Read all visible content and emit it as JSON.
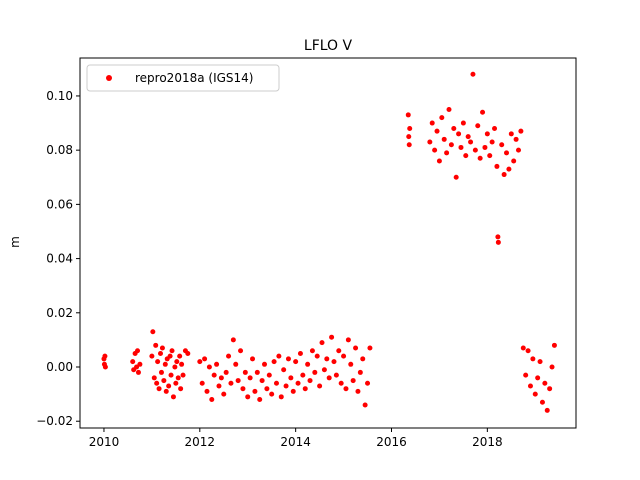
{
  "chart_data": {
    "type": "scatter",
    "title": "LFLO V",
    "xlabel": "",
    "ylabel": "m",
    "xlim": [
      2009.5,
      2019.85
    ],
    "ylim": [
      -0.0225,
      0.114
    ],
    "xticks": [
      2010,
      2012,
      2014,
      2016,
      2018
    ],
    "xtick_labels": [
      "2010",
      "2012",
      "2014",
      "2016",
      "2018"
    ],
    "yticks": [
      -0.02,
      0.0,
      0.02,
      0.04,
      0.06,
      0.08,
      0.1
    ],
    "ytick_labels": [
      "−0.02",
      "0.00",
      "0.02",
      "0.04",
      "0.06",
      "0.08",
      "0.10"
    ],
    "grid": false,
    "legend_position": "upper-left",
    "series": [
      {
        "name": "repro2018a (IGS14)",
        "color": "#ff0000",
        "marker": "circle",
        "x": [
          2010.0,
          2010.01,
          2010.02,
          2010.03,
          2010.6,
          2010.62,
          2010.65,
          2010.68,
          2010.7,
          2010.72,
          2010.75,
          2011.0,
          2011.02,
          2011.05,
          2011.08,
          2011.1,
          2011.12,
          2011.15,
          2011.18,
          2011.2,
          2011.22,
          2011.25,
          2011.28,
          2011.3,
          2011.32,
          2011.35,
          2011.38,
          2011.4,
          2011.42,
          2011.45,
          2011.48,
          2011.5,
          2011.52,
          2011.55,
          2011.58,
          2011.6,
          2011.62,
          2011.65,
          2011.7,
          2011.75,
          2012.0,
          2012.05,
          2012.1,
          2012.15,
          2012.2,
          2012.25,
          2012.3,
          2012.35,
          2012.4,
          2012.45,
          2012.5,
          2012.55,
          2012.6,
          2012.65,
          2012.7,
          2012.75,
          2012.8,
          2012.85,
          2012.9,
          2012.95,
          2013.0,
          2013.05,
          2013.1,
          2013.15,
          2013.2,
          2013.25,
          2013.3,
          2013.35,
          2013.4,
          2013.45,
          2013.5,
          2013.55,
          2013.6,
          2013.65,
          2013.7,
          2013.75,
          2013.8,
          2013.85,
          2013.9,
          2013.95,
          2014.0,
          2014.05,
          2014.1,
          2014.15,
          2014.2,
          2014.25,
          2014.3,
          2014.35,
          2014.4,
          2014.45,
          2014.5,
          2014.55,
          2014.6,
          2014.65,
          2014.7,
          2014.75,
          2014.8,
          2014.85,
          2014.9,
          2014.95,
          2015.0,
          2015.05,
          2015.1,
          2015.15,
          2015.2,
          2015.25,
          2015.3,
          2015.35,
          2015.4,
          2015.45,
          2015.5,
          2015.55,
          2016.35,
          2016.36,
          2016.37,
          2016.38,
          2016.8,
          2016.85,
          2016.9,
          2016.95,
          2017.0,
          2017.05,
          2017.1,
          2017.15,
          2017.2,
          2017.25,
          2017.3,
          2017.35,
          2017.4,
          2017.45,
          2017.5,
          2017.55,
          2017.6,
          2017.65,
          2017.7,
          2017.75,
          2017.8,
          2017.85,
          2017.9,
          2017.95,
          2018.0,
          2018.05,
          2018.1,
          2018.15,
          2018.2,
          2018.22,
          2018.23,
          2018.3,
          2018.35,
          2018.4,
          2018.45,
          2018.5,
          2018.55,
          2018.6,
          2018.65,
          2018.7,
          2018.75,
          2018.8,
          2018.85,
          2018.9,
          2018.95,
          2019.0,
          2019.05,
          2019.1,
          2019.15,
          2019.2,
          2019.25,
          2019.3,
          2019.35,
          2019.4
        ],
        "y": [
          0.003,
          0.001,
          0.004,
          0.0,
          0.002,
          -0.001,
          0.005,
          0.0,
          0.006,
          -0.002,
          0.001,
          0.004,
          0.013,
          -0.004,
          0.008,
          -0.006,
          0.002,
          -0.008,
          0.005,
          -0.002,
          0.007,
          -0.005,
          0.001,
          -0.009,
          0.003,
          -0.007,
          0.004,
          -0.003,
          0.006,
          -0.011,
          0.0,
          -0.006,
          0.002,
          -0.004,
          0.004,
          -0.008,
          0.001,
          -0.003,
          0.006,
          0.005,
          0.002,
          -0.006,
          0.003,
          -0.009,
          0.0,
          -0.012,
          -0.003,
          0.001,
          -0.007,
          -0.004,
          -0.01,
          -0.002,
          0.004,
          -0.006,
          0.01,
          0.001,
          -0.005,
          0.006,
          -0.008,
          -0.002,
          -0.011,
          -0.004,
          0.003,
          -0.009,
          -0.002,
          -0.012,
          -0.005,
          0.001,
          -0.008,
          -0.003,
          -0.01,
          0.002,
          -0.006,
          0.004,
          -0.011,
          -0.001,
          -0.007,
          0.003,
          -0.004,
          -0.009,
          0.002,
          -0.006,
          0.005,
          -0.003,
          -0.008,
          0.001,
          -0.005,
          0.006,
          -0.002,
          0.004,
          -0.007,
          0.009,
          -0.001,
          0.003,
          -0.004,
          0.011,
          0.002,
          -0.003,
          0.006,
          -0.006,
          0.004,
          -0.008,
          0.01,
          0.001,
          -0.005,
          0.007,
          -0.009,
          -0.002,
          0.003,
          -0.014,
          -0.006,
          0.007,
          0.093,
          0.085,
          0.082,
          0.088,
          0.083,
          0.09,
          0.08,
          0.087,
          0.076,
          0.092,
          0.084,
          0.079,
          0.095,
          0.082,
          0.088,
          0.07,
          0.086,
          0.081,
          0.09,
          0.078,
          0.085,
          0.083,
          0.108,
          0.08,
          0.089,
          0.077,
          0.094,
          0.081,
          0.086,
          0.078,
          0.083,
          0.088,
          0.074,
          0.048,
          0.046,
          0.082,
          0.071,
          0.079,
          0.073,
          0.086,
          0.076,
          0.084,
          0.08,
          0.087,
          0.007,
          -0.003,
          0.006,
          -0.007,
          0.003,
          -0.01,
          -0.004,
          0.002,
          -0.013,
          -0.006,
          -0.016,
          -0.008,
          0.0,
          0.008
        ]
      }
    ]
  }
}
